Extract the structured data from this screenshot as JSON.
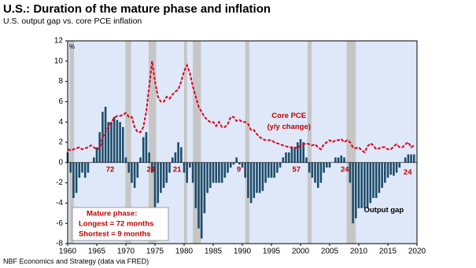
{
  "chart_data": {
    "type": "combo",
    "title": "U.S.: Duration of the mature phase and inflation",
    "subtitle": "U.S. output gap vs. core PCE inflation",
    "y_unit": "%",
    "source": "NBF Economics and Strategy (data via FRED)",
    "x": [
      1960,
      1960.5,
      1961,
      1961.5,
      1962,
      1962.5,
      1963,
      1963.5,
      1964,
      1964.5,
      1965,
      1965.5,
      1966,
      1966.5,
      1967,
      1967.5,
      1968,
      1968.5,
      1969,
      1969.5,
      1970,
      1970.5,
      1971,
      1971.5,
      1972,
      1972.5,
      1973,
      1973.5,
      1974,
      1974.5,
      1975,
      1975.5,
      1976,
      1976.5,
      1977,
      1977.5,
      1978,
      1978.5,
      1979,
      1979.5,
      1980,
      1980.5,
      1981,
      1981.5,
      1982,
      1982.5,
      1983,
      1983.5,
      1984,
      1984.5,
      1985,
      1985.5,
      1986,
      1986.5,
      1987,
      1987.5,
      1988,
      1988.5,
      1989,
      1989.5,
      1990,
      1990.5,
      1991,
      1991.5,
      1992,
      1992.5,
      1993,
      1993.5,
      1994,
      1994.5,
      1995,
      1995.5,
      1996,
      1996.5,
      1997,
      1997.5,
      1998,
      1998.5,
      1999,
      1999.5,
      2000,
      2000.5,
      2001,
      2001.5,
      2002,
      2002.5,
      2003,
      2003.5,
      2004,
      2004.5,
      2005,
      2005.5,
      2006,
      2006.5,
      2007,
      2007.5,
      2008,
      2008.5,
      2009,
      2009.5,
      2010,
      2010.5,
      2011,
      2011.5,
      2012,
      2012.5,
      2013,
      2013.5,
      2014,
      2014.5,
      2015,
      2015.5,
      2016,
      2016.5,
      2017,
      2017.5,
      2018,
      2018.5,
      2019,
      2019.5
    ],
    "series": [
      {
        "name": "Output gap",
        "type": "bar",
        "color": "#1d4d6b",
        "values": [
          1,
          -1,
          -3.5,
          -3,
          -1.5,
          -1,
          -1.5,
          -1,
          0,
          0.5,
          1.5,
          3,
          5,
          5.5,
          4,
          4,
          4.5,
          4.2,
          4,
          3.5,
          0.5,
          -1,
          -2,
          -2.5,
          -1.5,
          0.5,
          2.5,
          3,
          1,
          -1,
          -4.5,
          -4,
          -3,
          -2.5,
          -2,
          -1,
          0.5,
          1,
          2,
          1.5,
          -1,
          -2,
          -0.5,
          -2,
          -4.5,
          -6.5,
          -7.5,
          -5,
          -3,
          -2.5,
          -2,
          -2,
          -2,
          -2,
          -1.5,
          -1,
          -0.5,
          -0.2,
          0.5,
          -0.2,
          -0.5,
          -1.5,
          -3.5,
          -4,
          -3.5,
          -3,
          -3,
          -2.8,
          -2,
          -1.5,
          -1.5,
          -1.5,
          -1,
          -0.5,
          0.5,
          1,
          1,
          1.5,
          1.5,
          2,
          2.3,
          2,
          0.5,
          -1,
          -1.5,
          -2,
          -2.5,
          -2,
          -1,
          -0.5,
          -0.5,
          0,
          0.5,
          0.5,
          0.7,
          0.5,
          0,
          -2,
          -6,
          -5.5,
          -4.5,
          -4.5,
          -4.5,
          -4.5,
          -4,
          -3.5,
          -3.5,
          -3,
          -2.5,
          -2,
          -1.5,
          -1.2,
          -1.3,
          -1,
          -0.5,
          0,
          0.5,
          0.8,
          0.8,
          0.8
        ]
      },
      {
        "name": "Core PCE",
        "type": "line",
        "color": "#e0001b",
        "values": [
          1.3,
          1.2,
          1.3,
          1.4,
          1.5,
          1.3,
          1.4,
          1.5,
          1.7,
          1.5,
          1.3,
          1.4,
          2.5,
          3,
          3.5,
          4,
          4.4,
          4.6,
          4.6,
          4.7,
          4.9,
          4.5,
          4.5,
          3.5,
          3,
          3,
          3.5,
          5,
          7.5,
          10,
          8,
          6.5,
          6,
          6,
          6.5,
          6.3,
          6.7,
          7,
          7.2,
          8,
          9,
          9.6,
          8.8,
          7.5,
          6.5,
          5.5,
          5,
          4.5,
          4.2,
          4,
          4,
          3.6,
          4,
          3.5,
          3.5,
          3.8,
          4.5,
          4.5,
          4.1,
          4.2,
          4,
          4,
          3.8,
          3.2,
          3.2,
          2.8,
          2.5,
          2.3,
          2.2,
          2.2,
          2.2,
          2,
          1.9,
          1.8,
          1.7,
          1.6,
          1.5,
          1.5,
          1.5,
          1.4,
          1.7,
          1.8,
          1.9,
          1.8,
          1.7,
          1.8,
          1.5,
          1.3,
          1.8,
          2,
          2.2,
          2,
          2.2,
          2.2,
          2.3,
          2,
          2.2,
          2,
          1.5,
          1.4,
          1.5,
          1.2,
          1,
          1.6,
          1.9,
          1.7,
          1.3,
          1.4,
          1.5,
          1.5,
          1.3,
          1.3,
          1.6,
          1.8,
          1.5,
          1.5,
          1.8,
          2,
          1.5,
          1.7
        ]
      }
    ],
    "recessions": [
      [
        1960.3,
        1961.1
      ],
      [
        1969.9,
        1970.9
      ],
      [
        1973.9,
        1975.2
      ],
      [
        1980,
        1980.5
      ],
      [
        1981.5,
        1982.9
      ],
      [
        1990.5,
        1991.2
      ],
      [
        2001.2,
        2001.9
      ],
      [
        2007.9,
        2009.5
      ]
    ],
    "annotations": [
      {
        "text": "72",
        "x": 1967.3,
        "y": -0.7
      },
      {
        "text": "24",
        "x": 1974.3,
        "y": -0.7
      },
      {
        "text": "21",
        "x": 1978.8,
        "y": -0.7
      },
      {
        "text": "9",
        "x": 1989.4,
        "y": -0.7
      },
      {
        "text": "57",
        "x": 1999.3,
        "y": -0.7
      },
      {
        "text": "24",
        "x": 2007.6,
        "y": -0.7
      },
      {
        "text": "24",
        "x": 2018.4,
        "y": -1
      },
      {
        "text": "(y/y change)",
        "x": 1998,
        "y": 3.5
      }
    ],
    "series_label_positions": [
      [
        2014.3,
        -4.7
      ],
      [
        1998,
        4.6
      ]
    ],
    "box_lines": [
      "Mature phase:",
      "Longest = 72 months",
      "Shortest = 9 months"
    ],
    "xlim": [
      1960,
      2020
    ],
    "xticks": [
      1960,
      1965,
      1970,
      1975,
      1980,
      1985,
      1990,
      1995,
      2000,
      2005,
      2010,
      2015,
      2020
    ],
    "ylim": [
      -8,
      12
    ],
    "yticks": [
      -8,
      -6,
      -4,
      -2,
      0,
      2,
      4,
      6,
      8,
      10,
      12
    ],
    "recession_color": "#c6c6c6",
    "background": "#dfe8f8"
  }
}
